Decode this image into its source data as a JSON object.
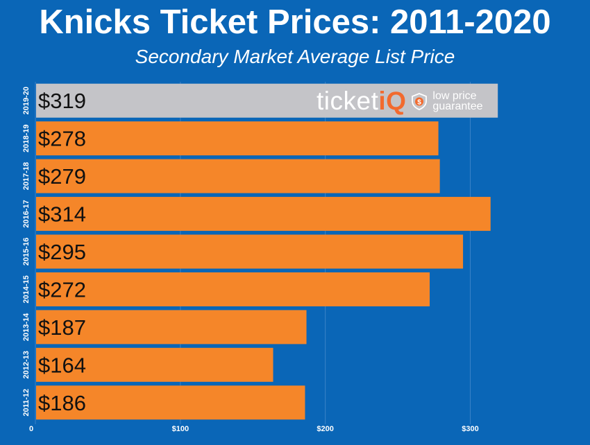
{
  "chart_data": {
    "type": "bar",
    "orientation": "horizontal",
    "title": "Knicks Ticket Prices: 2011-2020",
    "subtitle": "Secondary Market Average List Price",
    "categories": [
      "2019-20",
      "2018-19",
      "2017-18",
      "2016-17",
      "2015-16",
      "2014-15",
      "2013-14",
      "2012-13",
      "2011-12"
    ],
    "values": [
      319,
      278,
      279,
      314,
      295,
      272,
      187,
      164,
      186
    ],
    "value_labels": [
      "$319",
      "$278",
      "$279",
      "$314",
      "$295",
      "$272",
      "$187",
      "$164",
      "$186"
    ],
    "xticks": [
      {
        "value": 0,
        "label": "0"
      },
      {
        "value": 100,
        "label": "$100"
      },
      {
        "value": 200,
        "label": "$200"
      },
      {
        "value": 300,
        "label": "$300"
      }
    ],
    "xlim": [
      0,
      362
    ],
    "grid": true,
    "highlight_category": "2019-20",
    "colors": {
      "background": "#0a66b7",
      "bar": "#f58629",
      "highlight_bar": "#c4c4c8",
      "gridline": "#3b83c8",
      "axis_text": "#ffffff",
      "value_text": "#111111"
    }
  },
  "logo": {
    "brand_plain": "ticket",
    "brand_accent": "iQ",
    "tagline_line1": "low price",
    "tagline_line2": "guarantee",
    "badge_icon": "shield-dollar-icon"
  }
}
